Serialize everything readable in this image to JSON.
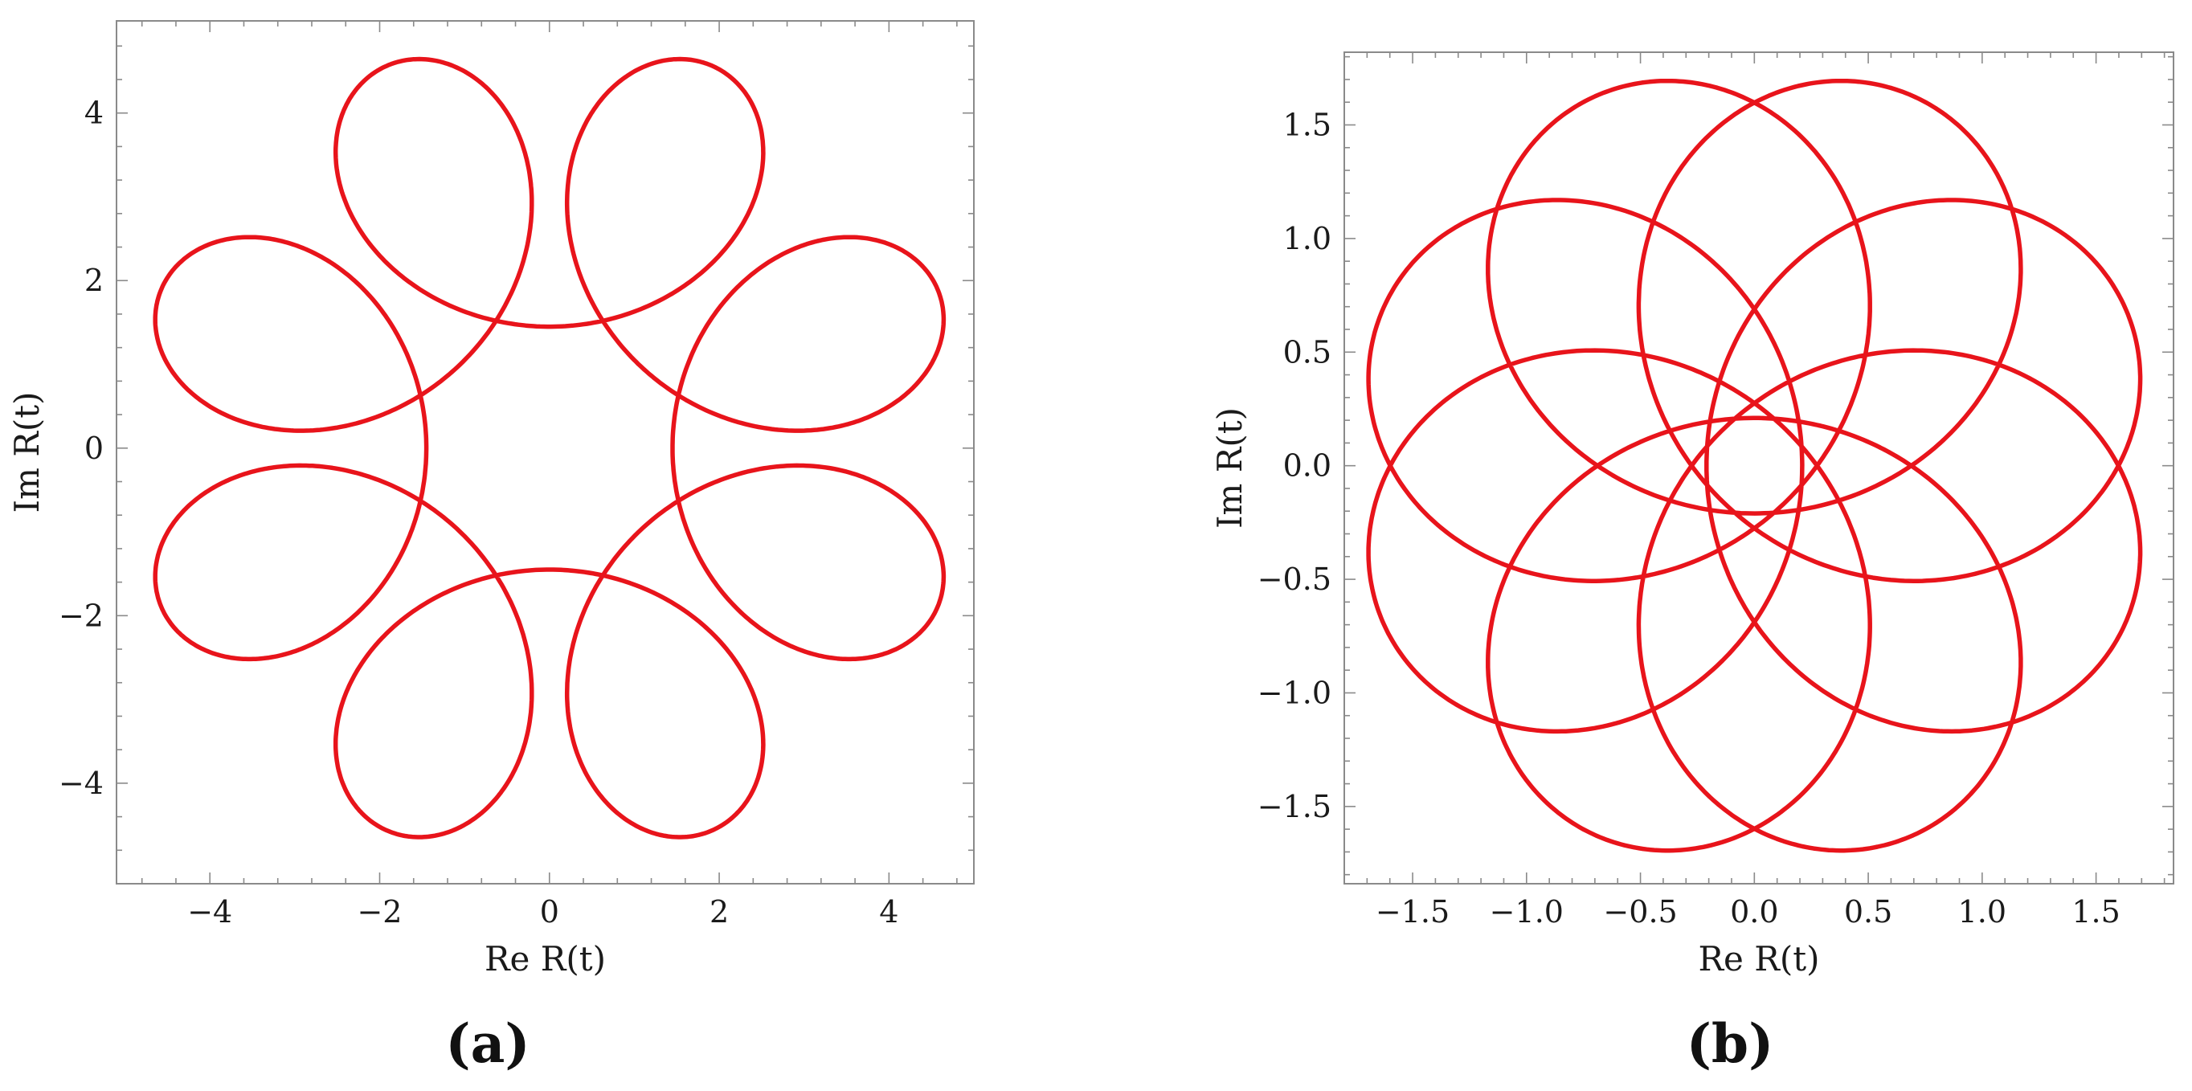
{
  "figure": {
    "panels": [
      {
        "label": "(a)"
      },
      {
        "label": "(b)"
      }
    ]
  },
  "chart_data": [
    {
      "type": "line",
      "panel": "(a)",
      "xlabel": "Re R(t)",
      "ylabel": "Im R(t)",
      "xlim": [
        -5.1,
        5.0
      ],
      "ylim": [
        -5.2,
        5.1
      ],
      "xticks": [
        -4,
        -2,
        0,
        2,
        4
      ],
      "yticks": [
        -4,
        -2,
        0,
        2,
        4
      ],
      "xtick_labels": [
        "−4",
        "−2",
        "0",
        "2",
        "4"
      ],
      "ytick_labels": [
        "−4",
        "−2",
        "0",
        "2",
        "4"
      ],
      "grid": false,
      "series": [
        {
          "color": "#e8141b",
          "curve": "epitrochoid",
          "R_big": 3.2,
          "r_small": 1.75,
          "omega_small": -7,
          "t_end": 6.6,
          "start_point": [
            0.0,
            -1.8
          ],
          "end_point": [
            0.8,
            -1.6
          ]
        }
      ]
    },
    {
      "type": "line",
      "panel": "(b)",
      "xlabel": "Re R(t)",
      "ylabel": "Im R(t)",
      "xlim": [
        -1.8,
        1.84
      ],
      "ylim": [
        -1.84,
        1.82
      ],
      "xticks": [
        -1.5,
        -1.0,
        -0.5,
        0.0,
        0.5,
        1.0,
        1.5
      ],
      "yticks": [
        -1.5,
        -1.0,
        -0.5,
        0.0,
        0.5,
        1.0,
        1.5
      ],
      "xtick_labels": [
        "−1.5",
        "−1.0",
        "−0.5",
        "0.0",
        "0.5",
        "1.0",
        "1.5"
      ],
      "ytick_labels": [
        "−1.5",
        "−1.0",
        "−0.5",
        "0.0",
        "0.5",
        "1.0",
        "1.5"
      ],
      "grid": false,
      "series": [
        {
          "color": "#e8141b",
          "curve": "epitrochoid",
          "R_big": 0.78,
          "r_small": 0.99,
          "omega_small": -7,
          "t_end": 6.4,
          "start_point": [
            0.0,
            -1.77
          ],
          "end_point": [
            0.78,
            -1.6
          ]
        }
      ]
    }
  ]
}
